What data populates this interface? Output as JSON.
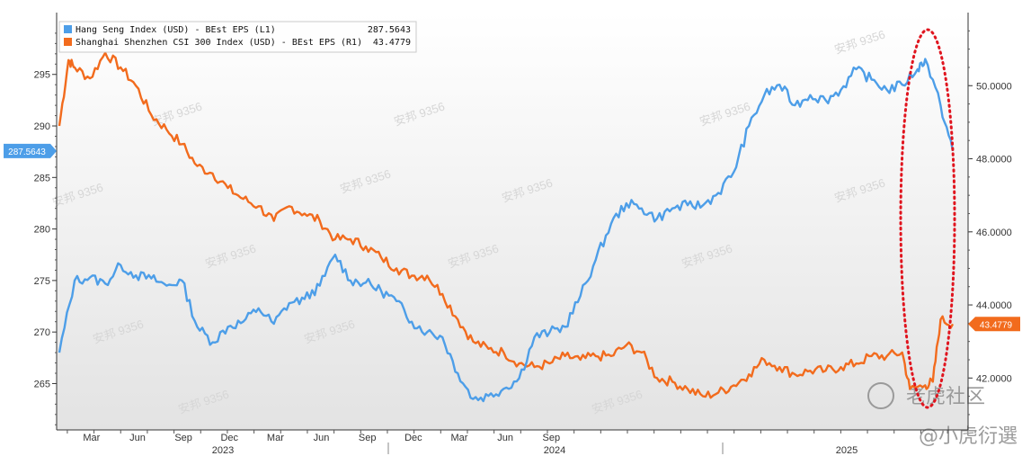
{
  "chart_data": {
    "type": "line",
    "x_axis": {
      "month_ticks": [
        "Mar",
        "Jun",
        "Sep",
        "Dec",
        "Mar",
        "Jun",
        "Sep",
        "Dec",
        "Mar",
        "Jun",
        "Sep"
      ],
      "years": [
        "2023",
        "2024",
        "2025"
      ]
    },
    "left_axis": {
      "ylim": [
        260.5,
        301
      ],
      "ticks": [
        265,
        270,
        275,
        280,
        285,
        290,
        295
      ],
      "tick_labels": [
        "265",
        "270",
        "275",
        "280",
        "285",
        "290",
        "295"
      ]
    },
    "right_axis": {
      "ylim": [
        40.58,
        52.0
      ],
      "ticks": [
        42.0,
        44.0,
        46.0,
        48.0,
        50.0
      ],
      "tick_labels": [
        "42.0000",
        "44.0000",
        "46.0000",
        "48.0000",
        "50.0000"
      ]
    },
    "series": [
      {
        "name": "Hang Seng Index (USD) - BEst EPS (L1)",
        "axis": "left",
        "color": "#4d9ee8",
        "last_value": "287.5643",
        "points": [
          [
            0,
            268
          ],
          [
            1,
            275
          ],
          [
            2,
            275.3
          ],
          [
            3,
            274.7
          ],
          [
            4,
            276.5
          ],
          [
            5,
            275.5
          ],
          [
            6,
            275.2
          ],
          [
            7,
            274.5
          ],
          [
            8,
            275
          ],
          [
            9,
            270.5
          ],
          [
            10,
            269
          ],
          [
            11,
            270.5
          ],
          [
            12,
            271
          ],
          [
            13,
            272.3
          ],
          [
            14,
            270.8
          ],
          [
            15,
            272.8
          ],
          [
            16,
            273.2
          ],
          [
            17,
            274.5
          ],
          [
            18,
            277.5
          ],
          [
            19,
            275
          ],
          [
            20,
            274.8
          ],
          [
            21,
            274
          ],
          [
            22,
            273
          ],
          [
            23,
            271
          ],
          [
            24,
            270
          ],
          [
            25,
            269.5
          ],
          [
            26,
            266
          ],
          [
            27,
            263.5
          ],
          [
            28,
            263.8
          ],
          [
            29,
            264.5
          ],
          [
            30,
            265.5
          ],
          [
            31,
            269.5
          ],
          [
            32,
            270
          ],
          [
            33,
            270.5
          ],
          [
            34,
            273.5
          ],
          [
            35,
            277
          ],
          [
            36,
            280.5
          ],
          [
            37,
            282.5
          ],
          [
            38,
            282
          ],
          [
            39,
            281
          ],
          [
            40,
            282
          ],
          [
            41,
            282.3
          ],
          [
            42,
            282.3
          ],
          [
            43,
            283.5
          ],
          [
            44,
            285.5
          ],
          [
            45,
            290
          ],
          [
            46,
            293
          ],
          [
            47,
            294
          ],
          [
            48,
            292
          ],
          [
            49,
            293
          ],
          [
            50,
            292.5
          ],
          [
            51,
            293.5
          ],
          [
            52,
            295.5
          ],
          [
            53,
            294.5
          ],
          [
            54,
            293.5
          ],
          [
            55,
            294
          ],
          [
            56,
            295.5
          ],
          [
            56.5,
            296.5
          ],
          [
            57.5,
            292
          ],
          [
            58.3,
            287.5643
          ]
        ]
      },
      {
        "name": "Shanghai Shenzhen CSI 300 Index (USD) - BEst EPS (R1)",
        "axis": "right",
        "color": "#f26b1d",
        "last_value": "43.4779",
        "points": [
          [
            0,
            48.9
          ],
          [
            0.6,
            50.7
          ],
          [
            1,
            50.5
          ],
          [
            2,
            50.2
          ],
          [
            3,
            50.9
          ],
          [
            4,
            50.5
          ],
          [
            5,
            50
          ],
          [
            6,
            49.2
          ],
          [
            7,
            48.8
          ],
          [
            8,
            48.4
          ],
          [
            9,
            47.8
          ],
          [
            10,
            47.6
          ],
          [
            11,
            47.2
          ],
          [
            12,
            46.9
          ],
          [
            13,
            46.7
          ],
          [
            14,
            46.3
          ],
          [
            15,
            46.7
          ],
          [
            16,
            46.5
          ],
          [
            17,
            46.3
          ],
          [
            18,
            45.8
          ],
          [
            19,
            45.8
          ],
          [
            20,
            45.6
          ],
          [
            21,
            45.3
          ],
          [
            22,
            45.0
          ],
          [
            23,
            44.8
          ],
          [
            24,
            44.8
          ],
          [
            25,
            44.3
          ],
          [
            26,
            43.6
          ],
          [
            27,
            43.0
          ],
          [
            28,
            42.8
          ],
          [
            29,
            42.7
          ],
          [
            30,
            42.4
          ],
          [
            31,
            42.3
          ],
          [
            32,
            42.4
          ],
          [
            33,
            42.6
          ],
          [
            34,
            42.5
          ],
          [
            35,
            42.6
          ],
          [
            36,
            42.6
          ],
          [
            37,
            42.9
          ],
          [
            38,
            42.7
          ],
          [
            39,
            42.0
          ],
          [
            40,
            41.9
          ],
          [
            41,
            41.7
          ],
          [
            42,
            41.5
          ],
          [
            43,
            41.6
          ],
          [
            44,
            41.8
          ],
          [
            45,
            42.1
          ],
          [
            46,
            42.5
          ],
          [
            47,
            42.3
          ],
          [
            48,
            42.1
          ],
          [
            49,
            42.2
          ],
          [
            50,
            42.2
          ],
          [
            51,
            42.3
          ],
          [
            52,
            42.4
          ],
          [
            53,
            42.6
          ],
          [
            54,
            42.6
          ],
          [
            55,
            42.7
          ],
          [
            55.5,
            41.7
          ],
          [
            56.5,
            41.8
          ],
          [
            57,
            41.9
          ],
          [
            57.5,
            43.6
          ],
          [
            58.3,
            43.4779
          ]
        ]
      }
    ],
    "annotations": {
      "highlight": "red dotted ellipse around the latest values",
      "watermarks": [
        "安邦 9356",
        "@小虎衍選",
        "老虎社区"
      ]
    },
    "legend_placement": "top-left",
    "grid": false
  }
}
